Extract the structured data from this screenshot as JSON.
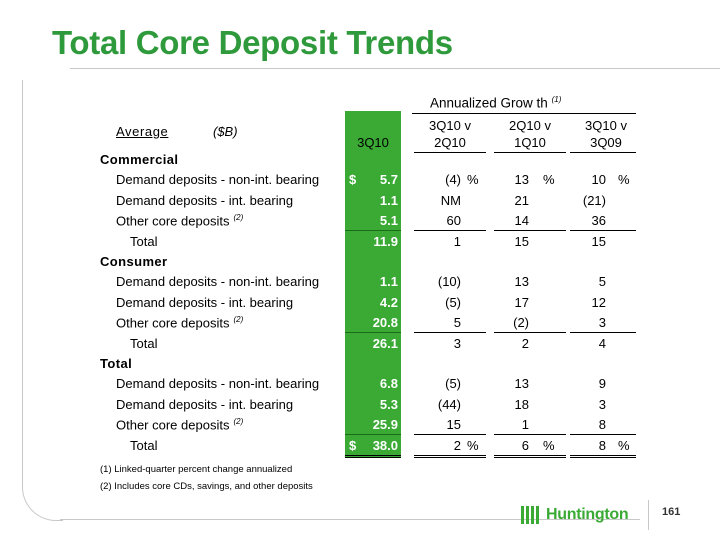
{
  "title": "Total Core Deposit Trends",
  "header": {
    "annualized": "Annualized Grow th",
    "annualized_sup": "(1)",
    "average": "Average",
    "units": "($B)",
    "col1": "3Q10",
    "col2_top": "3Q10 v",
    "col2_bottom": "2Q10",
    "col3_top": "2Q10 v",
    "col3_bottom": "1Q10",
    "col4_top": "3Q10 v",
    "col4_bottom": "3Q09"
  },
  "sections": [
    {
      "name": "Commercial",
      "rows": [
        {
          "label": "Demand deposits - non-int. bearing",
          "sup": "",
          "dollar": "$",
          "val": "5.7",
          "g1": "(4)",
          "g1pct": "%",
          "g2": "13",
          "g2pct": "%",
          "g3": "10",
          "g3pct": "%"
        },
        {
          "label": "Demand deposits - int. bearing",
          "sup": "",
          "dollar": "",
          "val": "1.1",
          "g1": "NM",
          "g1pct": "",
          "g2": "21",
          "g2pct": "",
          "g3": "(21)",
          "g3pct": ""
        },
        {
          "label": "Other core deposits",
          "sup": "(2)",
          "dollar": "",
          "val": "5.1",
          "g1": "60",
          "g1pct": "",
          "g2": "14",
          "g2pct": "",
          "g3": "36",
          "g3pct": ""
        },
        {
          "label": "Total",
          "sup": "",
          "dollar": "",
          "val": "11.9",
          "g1": "1",
          "g1pct": "",
          "g2": "15",
          "g2pct": "",
          "g3": "15",
          "g3pct": ""
        }
      ]
    },
    {
      "name": "Consumer",
      "rows": [
        {
          "label": "Demand deposits - non-int. bearing",
          "sup": "",
          "dollar": "",
          "val": "1.1",
          "g1": "(10)",
          "g1pct": "",
          "g2": "13",
          "g2pct": "",
          "g3": "5",
          "g3pct": ""
        },
        {
          "label": "Demand deposits - int. bearing",
          "sup": "",
          "dollar": "",
          "val": "4.2",
          "g1": "(5)",
          "g1pct": "",
          "g2": "17",
          "g2pct": "",
          "g3": "12",
          "g3pct": ""
        },
        {
          "label": "Other core deposits",
          "sup": "(2)",
          "dollar": "",
          "val": "20.8",
          "g1": "5",
          "g1pct": "",
          "g2": "(2)",
          "g2pct": "",
          "g3": "3",
          "g3pct": ""
        },
        {
          "label": "Total",
          "sup": "",
          "dollar": "",
          "val": "26.1",
          "g1": "3",
          "g1pct": "",
          "g2": "2",
          "g2pct": "",
          "g3": "4",
          "g3pct": ""
        }
      ]
    },
    {
      "name": "Total",
      "rows": [
        {
          "label": "Demand deposits - non-int. bearing",
          "sup": "",
          "dollar": "",
          "val": "6.8",
          "g1": "(5)",
          "g1pct": "",
          "g2": "13",
          "g2pct": "",
          "g3": "9",
          "g3pct": ""
        },
        {
          "label": "Demand deposits - int. bearing",
          "sup": "",
          "dollar": "",
          "val": "5.3",
          "g1": "(44)",
          "g1pct": "",
          "g2": "18",
          "g2pct": "",
          "g3": "3",
          "g3pct": ""
        },
        {
          "label": "Other core deposits",
          "sup": "(2)",
          "dollar": "",
          "val": "25.9",
          "g1": "15",
          "g1pct": "",
          "g2": "1",
          "g2pct": "",
          "g3": "8",
          "g3pct": ""
        },
        {
          "label": "Total",
          "sup": "",
          "dollar": "$",
          "val": "38.0",
          "g1": "2",
          "g1pct": "%",
          "g2": "6",
          "g2pct": "%",
          "g3": "8",
          "g3pct": "%"
        }
      ]
    }
  ],
  "footnotes": [
    "(1)  Linked-quarter percent change annualized",
    "(2)  Includes core CDs, savings, and other deposits"
  ],
  "logo": {
    "text": "Huntington"
  },
  "page_number": "161",
  "colors": {
    "title_green": "#2f9a3b",
    "bar_green": "#3aaa35"
  }
}
